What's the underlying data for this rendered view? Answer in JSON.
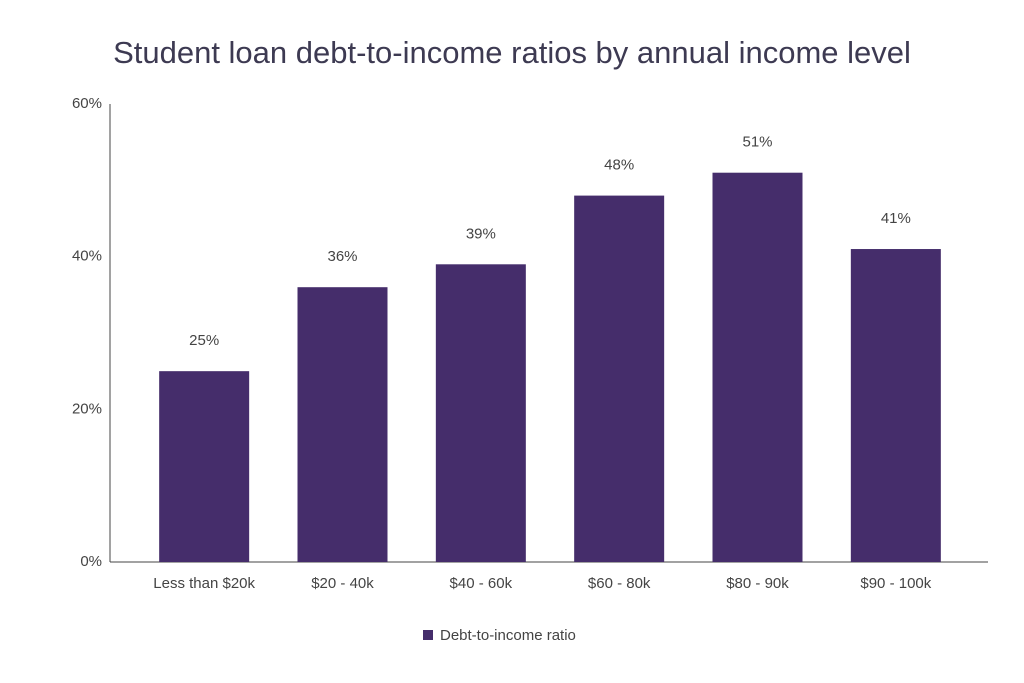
{
  "chart_data": {
    "type": "bar",
    "title": "Student loan debt-to-income ratios by annual income level",
    "categories": [
      "Less than $20k",
      "$20 - 40k",
      "$40 - 60k",
      "$60 - 80k",
      "$80 - 90k",
      "$90 - 100k"
    ],
    "series": [
      {
        "name": "Debt-to-income ratio",
        "color": "#452d6b",
        "values": [
          25,
          36,
          39,
          48,
          51,
          41
        ],
        "value_labels": [
          "25%",
          "36%",
          "39%",
          "48%",
          "51%",
          "41%"
        ]
      }
    ],
    "ylim": [
      0,
      60
    ],
    "yticks": [
      {
        "value": 0,
        "label": "0%"
      },
      {
        "value": 20,
        "label": "20%"
      },
      {
        "value": 40,
        "label": "40%"
      },
      {
        "value": 60,
        "label": "60%"
      }
    ],
    "grid": false,
    "legend": "bottom"
  }
}
